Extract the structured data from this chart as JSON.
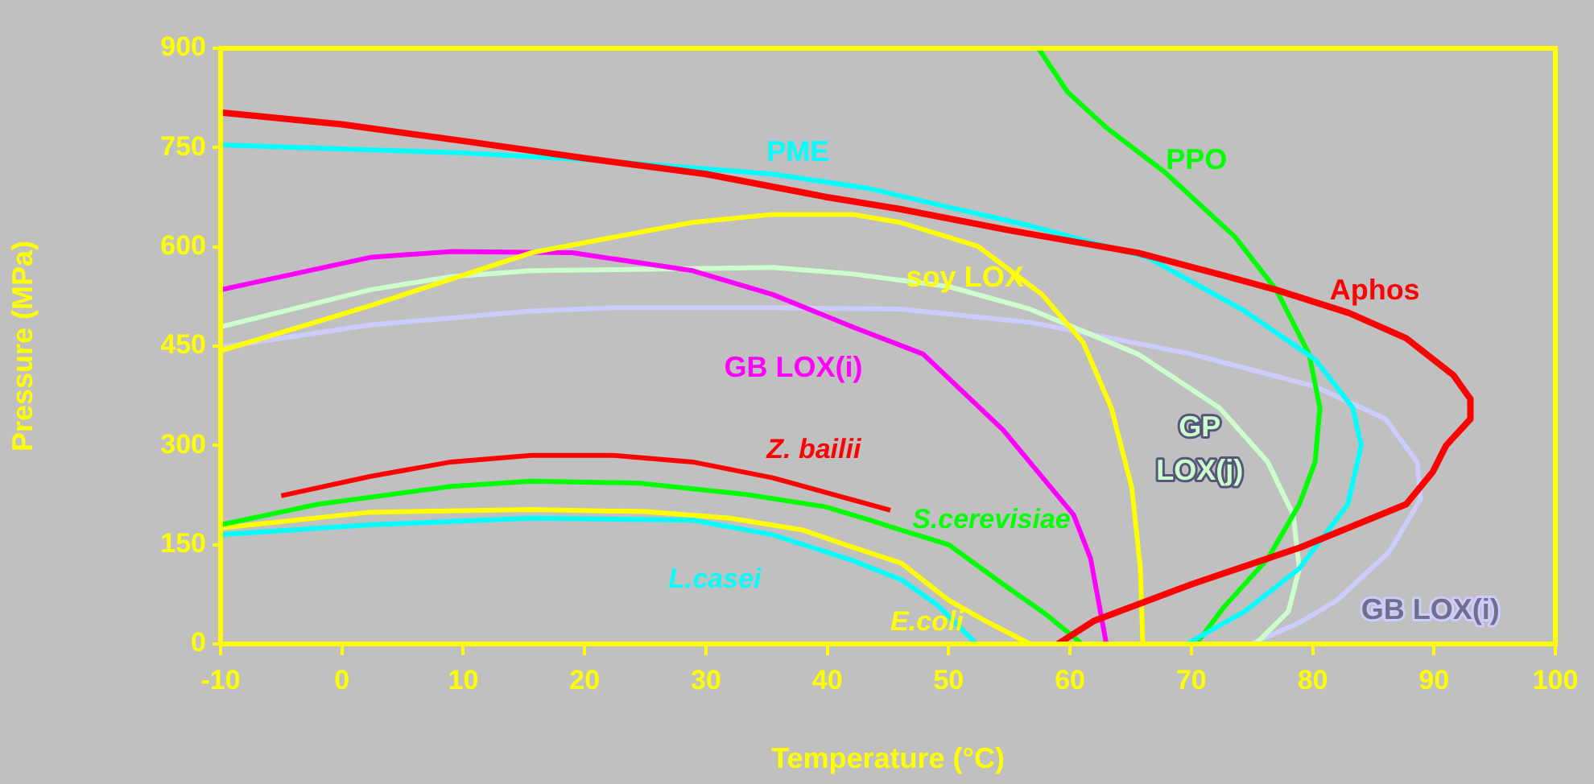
{
  "chart_data": {
    "type": "line",
    "xlabel": "Temperature (°C)",
    "ylabel": "Pressure (MPa)",
    "xlim": [
      -10,
      100
    ],
    "xticks": [
      -10,
      0,
      10,
      20,
      30,
      40,
      50,
      60,
      70,
      80,
      90,
      100
    ],
    "ylim": [
      0,
      900
    ],
    "yticks": [
      0,
      150,
      300,
      450,
      600,
      750,
      900
    ],
    "grid": false,
    "legend": false,
    "series": [
      {
        "name": "Aphos",
        "color": "#ff0000",
        "x": [
          -10,
          0,
          10,
          20,
          30,
          40,
          46,
          55,
          65.6,
          72,
          77,
          83,
          87.7,
          91.6,
          93,
          93,
          91,
          89.9,
          87.7,
          79,
          70,
          62,
          59
        ],
        "values": [
          803,
          785,
          760,
          734,
          710,
          675,
          657,
          625,
          591,
          560,
          535,
          500,
          462,
          406,
          370,
          340,
          300,
          260,
          211,
          146,
          90,
          35,
          0
        ]
      },
      {
        "name": "PME",
        "color": "#00ffff",
        "x": [
          -10,
          0,
          10,
          20,
          30,
          35.5,
          43.5,
          50,
          56.7,
          66.4,
          74.4,
          80.2,
          83.3,
          84,
          82.9,
          78.9,
          74.4,
          69.6
        ],
        "values": [
          754,
          748,
          742,
          732,
          718,
          710,
          688,
          660,
          632,
          584,
          503,
          430,
          357,
          300,
          211,
          114,
          49,
          0
        ]
      },
      {
        "name": "PPO",
        "color": "#00ff00",
        "x": [
          57.4,
          59.8,
          63,
          67.8,
          73.6,
          77,
          79.7,
          80.6,
          80.2,
          78.9,
          76.3,
          72.7,
          70.4
        ],
        "values": [
          900,
          834,
          780,
          713,
          615,
          535,
          438,
          357,
          275,
          211,
          129,
          56,
          0
        ]
      },
      {
        "name": "soy LOX",
        "color": "#ffff00",
        "x": [
          -10,
          2.3,
          15.6,
          28.9,
          35.5,
          42.1,
          46,
          52.4,
          57.7,
          61.1,
          63.4,
          65.1,
          65.8,
          66
        ],
        "values": [
          443,
          511,
          591,
          637,
          649,
          649,
          637,
          601,
          528,
          455,
          357,
          236,
          114,
          0
        ]
      },
      {
        "name": "GB LOX(i)",
        "color": "#ff00ff",
        "x": [
          -10,
          2.3,
          9,
          19,
          28.9,
          35.5,
          42.1,
          47.9,
          54.5,
          60.3,
          61.7,
          63
        ],
        "values": [
          535,
          584,
          593,
          591,
          564,
          528,
          479,
          438,
          323,
          195,
          129,
          0
        ]
      },
      {
        "name": "GP LOX(j)",
        "color": "#ccffcc",
        "x": [
          -10,
          2.3,
          9,
          15.6,
          28.9,
          35.5,
          42.1,
          50,
          56.7,
          65.6,
          72.3,
          76.3,
          78.4,
          78.9,
          78,
          75.3
        ],
        "values": [
          479,
          535,
          555,
          564,
          567,
          569,
          559,
          540,
          506,
          438,
          357,
          275,
          195,
          114,
          49,
          0
        ]
      },
      {
        "name": "GB LOX(i)",
        "color": "#ccccff",
        "x": [
          -10,
          2.3,
          15.6,
          22.3,
          35.5,
          46,
          56.7,
          70,
          80.2,
          86,
          88.6,
          88.9,
          86.3,
          82,
          78.9,
          74.9
        ],
        "values": [
          448,
          482,
          503,
          508,
          508,
          506,
          486,
          438,
          389,
          340,
          275,
          219,
          139,
          66,
          32,
          0
        ]
      },
      {
        "name": "Z. bailii",
        "color": "#ff0000",
        "x": [
          -5,
          2.3,
          9,
          15.6,
          22.3,
          28.9,
          35.5,
          45.2
        ],
        "values": [
          224,
          253,
          275,
          285,
          285,
          275,
          251,
          202
        ]
      },
      {
        "name": "S.cerevisiae",
        "color": "#00ff00",
        "x": [
          -10,
          -2,
          9,
          15.6,
          24.5,
          33.3,
          39.9,
          43.5,
          46.1,
          50,
          54.5,
          58,
          61
        ],
        "values": [
          180,
          211,
          238,
          246,
          243,
          226,
          207,
          187,
          172,
          150,
          90,
          45,
          0
        ]
      },
      {
        "name": "L.casei",
        "color": "#00ffff",
        "x": [
          -10,
          2.3,
          15.6,
          28.9,
          35.5,
          42.1,
          46.1,
          49,
          52.3
        ],
        "values": [
          165,
          180,
          190,
          187,
          165,
          126,
          97,
          60,
          0
        ]
      },
      {
        "name": "E.coli",
        "color": "#ffff00",
        "x": [
          -10,
          2.3,
          15.6,
          25,
          32,
          38,
          42.1,
          46.1,
          50,
          53,
          56.7
        ],
        "values": [
          175,
          199,
          203,
          200,
          190,
          172,
          146,
          122,
          66,
          35,
          0
        ]
      }
    ]
  }
}
